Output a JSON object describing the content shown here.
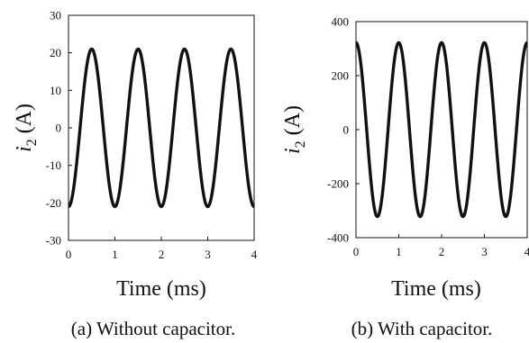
{
  "chart_data": [
    {
      "type": "line",
      "xlabel": "Time (ms)",
      "ylabel_main": "i",
      "ylabel_sub": "2",
      "ylabel_unit": "(A)",
      "caption": "(a) Without capacitor.",
      "xlim": [
        0,
        4
      ],
      "ylim": [
        -30,
        30
      ],
      "xticks": [
        0,
        1,
        2,
        3,
        4
      ],
      "yticks": [
        -30,
        -20,
        -10,
        0,
        10,
        20,
        30
      ],
      "grid": false,
      "series": [
        {
          "amplitude": 21,
          "frequency_khz": 1,
          "phase_deg": -90,
          "color": "#111111"
        }
      ]
    },
    {
      "type": "line",
      "xlabel": "Time (ms)",
      "ylabel_main": "i",
      "ylabel_sub": "2",
      "ylabel_unit": "(A)",
      "caption": "(b) With capacitor.",
      "xlim": [
        0,
        4
      ],
      "ylim": [
        -400,
        400
      ],
      "xticks": [
        0,
        1,
        2,
        3,
        4
      ],
      "yticks": [
        -400,
        -200,
        0,
        200,
        400
      ],
      "grid": false,
      "series": [
        {
          "amplitude": 322,
          "frequency_khz": 1,
          "phase_deg": 90,
          "color": "#111111"
        }
      ]
    }
  ]
}
